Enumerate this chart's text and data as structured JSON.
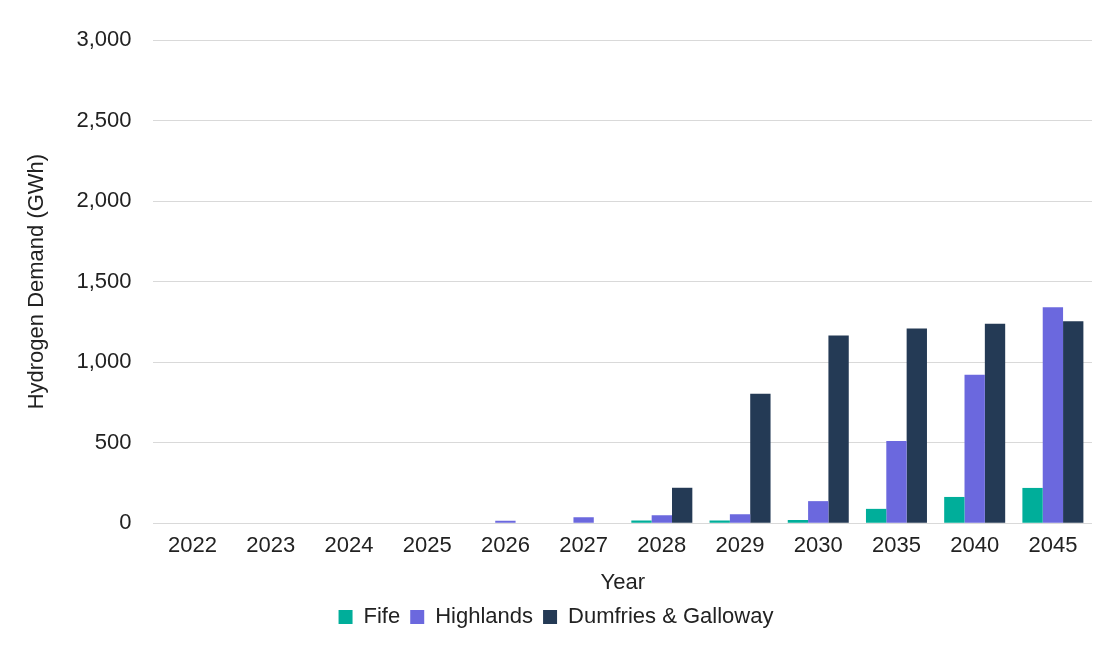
{
  "chart_data": {
    "type": "bar",
    "xlabel": "Year",
    "ylabel": "Hydrogen Demand (GWh)",
    "categories": [
      "2022",
      "2023",
      "2024",
      "2025",
      "2026",
      "2027",
      "2028",
      "2029",
      "2030",
      "2035",
      "2040",
      "2045"
    ],
    "series": [
      {
        "name": "Fife",
        "color": "#00ae9a",
        "values": [
          0,
          0,
          0,
          0,
          0,
          0,
          17,
          17,
          20,
          89,
          163,
          219
        ]
      },
      {
        "name": "Highlands",
        "color": "#6b68de",
        "values": [
          0,
          0,
          0,
          0,
          15,
          37,
          50,
          56,
          137,
          510,
          922,
          1341
        ]
      },
      {
        "name": "Dumfries & Galloway",
        "color": "#243a55",
        "values": [
          0,
          0,
          0,
          0,
          0,
          0,
          220,
          804,
          1165,
          1209,
          1239,
          1254
        ]
      }
    ],
    "ylim": [
      0,
      3000
    ],
    "yticks": [
      {
        "value": 0,
        "label": "0"
      },
      {
        "value": 500,
        "label": "500"
      },
      {
        "value": 1000,
        "label": "1,000"
      },
      {
        "value": 1500,
        "label": "1,500"
      },
      {
        "value": 2000,
        "label": "2,000"
      },
      {
        "value": 2500,
        "label": "2,500"
      },
      {
        "value": 3000,
        "label": "3,000"
      }
    ],
    "grid": "y",
    "legend": "bottom"
  }
}
